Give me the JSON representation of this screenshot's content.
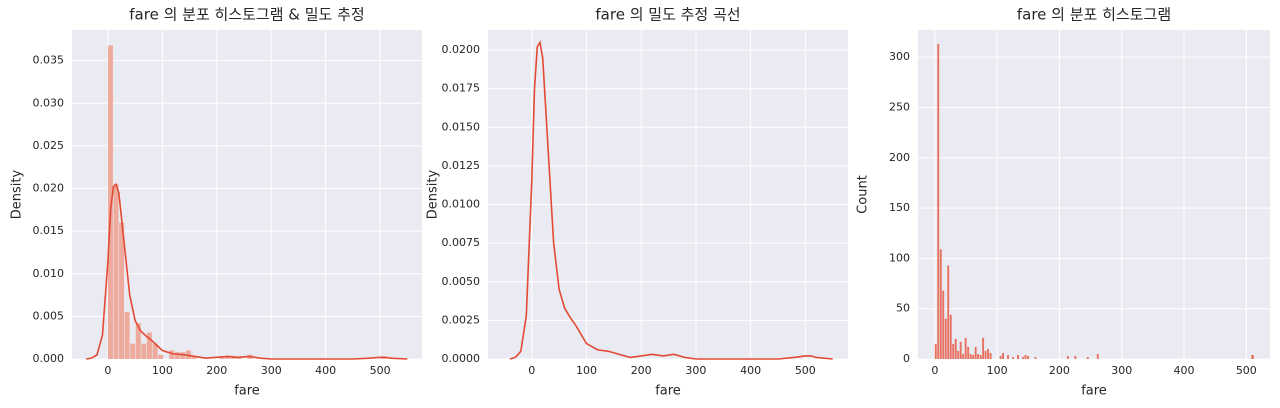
{
  "chart_data": [
    {
      "type": "histogram",
      "title": "fare 의 분포 히스토그램 & 밀도 추정",
      "xlabel": "fare",
      "ylabel": "Density",
      "bins": [
        0,
        10.25,
        20.49,
        30.74,
        40.99,
        51.23,
        61.48,
        71.73,
        81.97,
        92.22,
        102.47,
        112.71,
        122.96,
        133.21,
        143.45,
        153.7,
        163.95,
        174.19,
        184.44,
        194.69,
        204.93,
        215.18,
        225.43,
        235.67,
        245.92,
        256.17,
        266.41,
        276.66,
        286.91,
        297.15,
        307.4,
        317.65,
        327.89,
        338.14,
        348.39,
        358.63,
        368.88,
        379.13,
        389.37,
        399.62,
        409.87,
        420.11,
        430.36,
        440.61,
        450.85,
        461.1,
        471.35,
        481.59,
        491.84,
        502.09,
        512.33
      ],
      "values": [
        0.0368,
        0.0205,
        0.016,
        0.0055,
        0.0018,
        0.0042,
        0.0018,
        0.0031,
        0.0018,
        0.0005,
        0,
        0.001,
        0.0008,
        0.0008,
        0.001,
        0.0003,
        0,
        0,
        0,
        0,
        0.0002,
        0.0003,
        0.0003,
        0.0002,
        0,
        0.0005,
        0,
        0,
        0,
        0,
        0,
        0,
        0,
        0,
        0,
        0,
        0,
        0,
        0,
        0,
        0,
        0,
        0,
        0,
        0,
        0,
        0,
        0,
        0,
        0.0003
      ],
      "color": "#eeaa9c",
      "line": {
        "x": [
          -40,
          -30,
          -20,
          -10,
          0,
          5,
          10,
          15,
          20,
          30,
          40,
          50,
          60,
          70,
          80,
          90,
          100,
          120,
          140,
          160,
          180,
          200,
          220,
          240,
          260,
          280,
          300,
          350,
          400,
          450,
          480,
          500,
          510,
          520,
          550
        ],
        "values": [
          0,
          0.0001,
          0.0005,
          0.0028,
          0.0115,
          0.0175,
          0.0202,
          0.0205,
          0.0195,
          0.0135,
          0.0075,
          0.0045,
          0.0033,
          0.0027,
          0.0022,
          0.0016,
          0.001,
          0.0006,
          0.0005,
          0.0003,
          0.0001,
          0.0002,
          0.0003,
          0.0002,
          0.0003,
          0.0001,
          0,
          0,
          0,
          0,
          0.0001,
          0.0002,
          0.0002,
          0.0001,
          0
        ],
        "color": "#e24a33"
      },
      "xlim": [
        -66,
        577
      ],
      "ylim": [
        0,
        0.0386
      ],
      "xticks": [
        0,
        100,
        200,
        300,
        400,
        500
      ],
      "yticks": [
        {
          "value": 0,
          "label": "0.000"
        },
        {
          "value": 0.005,
          "label": "0.005"
        },
        {
          "value": 0.01,
          "label": "0.010"
        },
        {
          "value": 0.015,
          "label": "0.015"
        },
        {
          "value": 0.02,
          "label": "0.020"
        },
        {
          "value": 0.025,
          "label": "0.025"
        },
        {
          "value": 0.03,
          "label": "0.030"
        },
        {
          "value": 0.035,
          "label": "0.035"
        }
      ],
      "grid": true
    },
    {
      "type": "line",
      "title": "fare 의 밀도 추정 곡선",
      "xlabel": "fare",
      "ylabel": "Density",
      "x": [
        -40,
        -30,
        -20,
        -10,
        0,
        5,
        10,
        15,
        20,
        30,
        40,
        50,
        60,
        70,
        80,
        90,
        100,
        120,
        140,
        160,
        180,
        200,
        220,
        240,
        260,
        280,
        300,
        350,
        400,
        450,
        480,
        500,
        510,
        520,
        550
      ],
      "values": [
        0,
        0.0001,
        0.0005,
        0.0028,
        0.0115,
        0.0175,
        0.0202,
        0.0205,
        0.0195,
        0.0135,
        0.0075,
        0.0045,
        0.0033,
        0.0027,
        0.0022,
        0.0016,
        0.001,
        0.0006,
        0.0005,
        0.0003,
        0.0001,
        0.0002,
        0.0003,
        0.0002,
        0.0003,
        0.0001,
        0,
        0,
        0,
        0,
        0.0001,
        0.0002,
        0.0002,
        0.0001,
        0
      ],
      "color": "#e24a33",
      "xlim": [
        -80,
        578
      ],
      "ylim": [
        0,
        0.0213
      ],
      "xticks": [
        0,
        100,
        200,
        300,
        400,
        500
      ],
      "yticks": [
        {
          "value": 0,
          "label": "0.0000"
        },
        {
          "value": 0.0025,
          "label": "0.0025"
        },
        {
          "value": 0.005,
          "label": "0.0050"
        },
        {
          "value": 0.0075,
          "label": "0.0075"
        },
        {
          "value": 0.01,
          "label": "0.0100"
        },
        {
          "value": 0.0125,
          "label": "0.0125"
        },
        {
          "value": 0.015,
          "label": "0.0150"
        },
        {
          "value": 0.0175,
          "label": "0.0175"
        },
        {
          "value": 0.02,
          "label": "0.0200"
        }
      ],
      "grid": true
    },
    {
      "type": "histogram",
      "title": "fare 의 분포 히스토그램",
      "xlabel": "fare",
      "ylabel": "Count",
      "bins": [
        0,
        4,
        8,
        12,
        16,
        20,
        24,
        28,
        32,
        36,
        40,
        44,
        48,
        52,
        56,
        60,
        64,
        68,
        72,
        76,
        80,
        84,
        88,
        92,
        96,
        100,
        104,
        108,
        112,
        116,
        120,
        124,
        128,
        132,
        136,
        140,
        144,
        148,
        152,
        156,
        160,
        164,
        212,
        216,
        224,
        228,
        244,
        248,
        260,
        264,
        508,
        513
      ],
      "values": [
        15,
        313,
        109,
        68,
        40,
        93,
        44,
        15,
        20,
        8,
        17,
        5,
        21,
        12,
        5,
        4,
        12,
        5,
        4,
        21,
        8,
        10,
        6,
        0,
        0,
        0,
        3,
        6,
        0,
        4,
        0,
        2,
        0,
        4,
        0,
        2,
        4,
        3,
        0,
        0,
        2,
        0,
        3,
        0,
        3,
        0,
        2,
        0,
        5,
        0,
        4
      ],
      "color": "#e8705e",
      "xlim": [
        -27,
        538
      ],
      "ylim": [
        0,
        327
      ],
      "xticks": [
        0,
        100,
        200,
        300,
        400,
        500
      ],
      "yticks": [
        0,
        50,
        100,
        150,
        200,
        250,
        300
      ],
      "grid": true
    }
  ]
}
